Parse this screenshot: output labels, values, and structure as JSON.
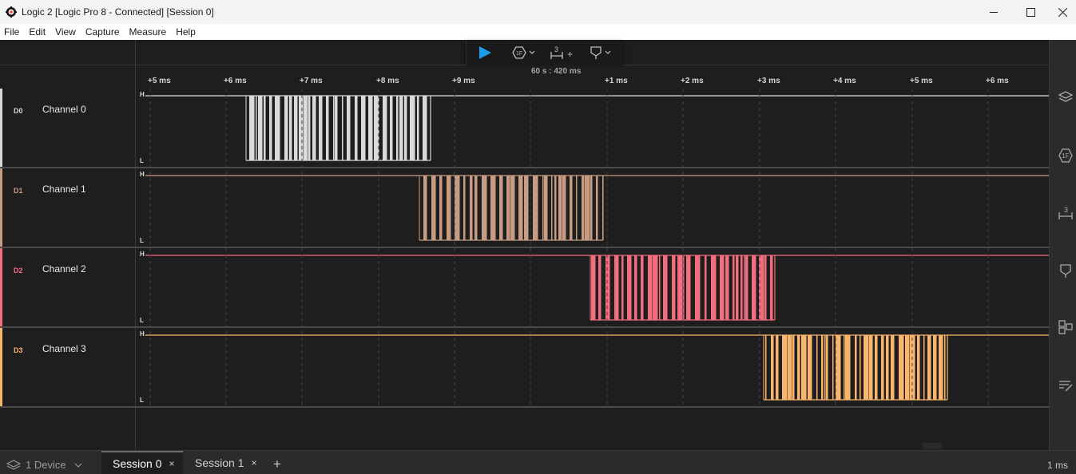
{
  "window": {
    "title": "Logic 2 [Logic Pro 8 - Connected] [Session 0]",
    "icons": [
      "app-icon",
      "minimize-icon",
      "maximize-icon",
      "close-icon"
    ]
  },
  "menu": [
    "File",
    "Edit",
    "View",
    "Capture",
    "Measure",
    "Help"
  ],
  "toolbar": {
    "play_icon": "play-icon",
    "analyzer_icon": "analyzer-icon",
    "timing_marker_label": "3",
    "timing_marker_plus": "+",
    "trigger_icon": "trigger-icon"
  },
  "timeline": {
    "reference": "60 s : 420 ms",
    "ticks": [
      "+5 ms",
      "+6 ms",
      "+7 ms",
      "+8 ms",
      "+9 ms",
      "+1 ms",
      "+2 ms",
      "+3 ms",
      "+4 ms",
      "+5 ms",
      "+6 ms"
    ]
  },
  "channels": [
    {
      "id": "D0",
      "name": "Channel 0",
      "color": "#d9d9d9",
      "high": "H",
      "low": "L"
    },
    {
      "id": "D1",
      "name": "Channel 1",
      "color": "#c89c82",
      "high": "H",
      "low": "L"
    },
    {
      "id": "D2",
      "name": "Channel 2",
      "color": "#f26d7d",
      "high": "H",
      "low": "L"
    },
    {
      "id": "D3",
      "name": "Channel 3",
      "color": "#f9b56b",
      "high": "H",
      "low": "L"
    }
  ],
  "sidebar_icons": [
    "analyzers-icon",
    "protocol-icon",
    "timing-markers-icon",
    "measurements-icon",
    "extensions-icon",
    "notes-icon"
  ],
  "sidebar_marker_label": "3",
  "bottom": {
    "device_label": "1 Device",
    "sessions": [
      {
        "label": "Session 0",
        "active": true,
        "close": "×"
      },
      {
        "label": "Session 1",
        "active": false,
        "close": "×"
      }
    ],
    "add_session": "+",
    "zoom": "1 ms"
  }
}
